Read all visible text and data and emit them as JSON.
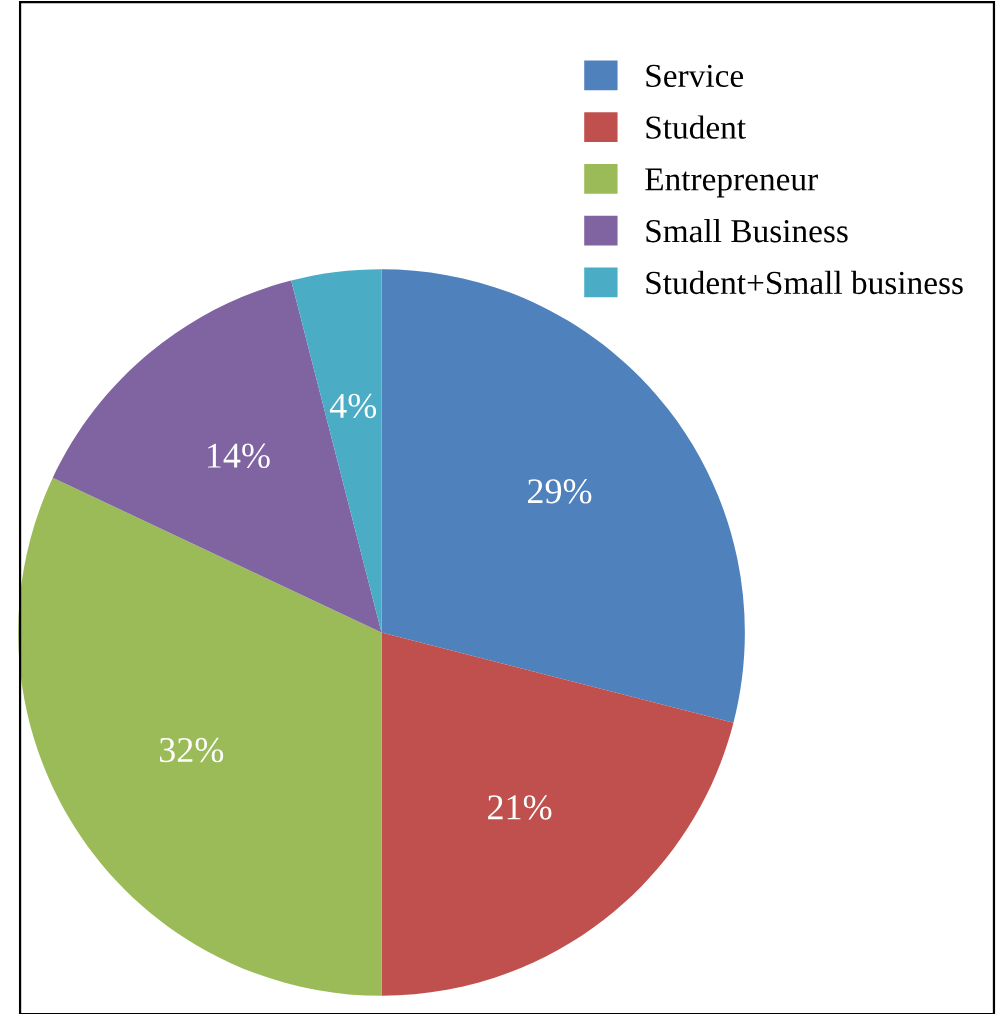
{
  "chart_data": {
    "type": "pie",
    "categories": [
      "Service",
      "Student",
      "Entrepreneur",
      "Small Business",
      "Student+Small business"
    ],
    "values": [
      29,
      21,
      32,
      14,
      4
    ],
    "colors": [
      "#4f81bd",
      "#c0504d",
      "#9bbb59",
      "#8064a2",
      "#4bacc6"
    ],
    "value_labels": [
      "29%",
      "21%",
      "32%",
      "14%",
      "4%"
    ],
    "legend": "top right"
  }
}
